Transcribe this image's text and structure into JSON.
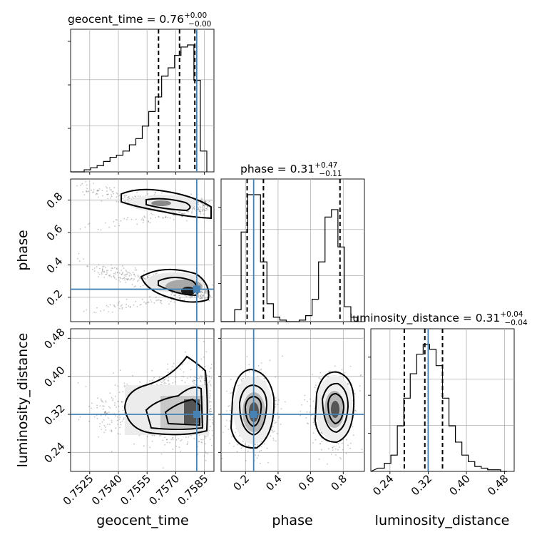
{
  "chart_data": {
    "type": "corner",
    "parameters": [
      "geocent_time",
      "phase",
      "luminosity_distance"
    ],
    "axis_labels": {
      "geocent_time": "geocent_time",
      "phase": "phase",
      "luminosity_distance": "luminosity_distance"
    },
    "titles": [
      {
        "param": "geocent_time",
        "text": "geocent_time = 0.76",
        "plus": "+0.00",
        "minus": "−0.00"
      },
      {
        "param": "phase",
        "text": "phase = 0.31",
        "plus": "+0.47",
        "minus": "−0.11"
      },
      {
        "param": "luminosity_distance",
        "text": "luminosity_distance = 0.31",
        "plus": "+0.04",
        "minus": "−0.04"
      }
    ],
    "ranges": {
      "geocent_time": [
        0.7515,
        0.759
      ],
      "phase": [
        0.05,
        0.93
      ],
      "luminosity_distance": [
        0.2,
        0.5
      ]
    },
    "ticks": {
      "geocent_time": {
        "values": [
          0.7525,
          0.754,
          0.7555,
          0.757,
          0.7585
        ],
        "labels": [
          "0.7525",
          "0.7540",
          "0.7555",
          "0.7570",
          "0.7585"
        ]
      },
      "phase": {
        "values": [
          0.2,
          0.4,
          0.6,
          0.8
        ],
        "labels": [
          "0.2",
          "0.4",
          "0.6",
          "0.8"
        ]
      },
      "luminosity_distance": {
        "values": [
          0.24,
          0.32,
          0.4,
          0.48
        ],
        "labels": [
          "0.24",
          "0.32",
          "0.40",
          "0.48"
        ]
      }
    },
    "truths": {
      "geocent_time": 0.7581,
      "phase": 0.25,
      "luminosity_distance": 0.32
    },
    "quantiles": {
      "geocent_time": [
        0.7561,
        0.7572,
        0.758
      ],
      "phase": [
        0.21,
        0.31,
        0.78
      ],
      "luminosity_distance": [
        0.27,
        0.313,
        0.35
      ]
    },
    "histograms": {
      "geocent_time": [
        0,
        1,
        2,
        3,
        5,
        7,
        8,
        10,
        13,
        16,
        22,
        29,
        36,
        46,
        50,
        56,
        60,
        61,
        44,
        10
      ],
      "phase": [
        0,
        8,
        60,
        85,
        85,
        40,
        12,
        3,
        1,
        0,
        0,
        1,
        4,
        15,
        40,
        70,
        75,
        50,
        10,
        3
      ],
      "luminosity_distance": [
        2,
        5,
        10,
        28,
        45,
        60,
        72,
        78,
        75,
        65,
        45,
        28,
        18,
        10,
        6,
        3,
        2,
        1,
        1,
        0
      ]
    },
    "grid": true
  }
}
